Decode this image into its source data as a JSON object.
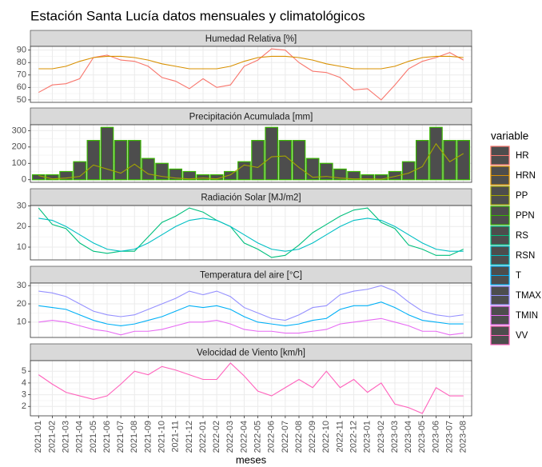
{
  "title": "Estación Santa Lucía datos mensuales y climatológicos",
  "x_label": "meses",
  "legend": {
    "title": "variable",
    "position": "right"
  },
  "chart_data": [
    {
      "type": "line",
      "title": "Humedad Relativa [%]",
      "categories": [
        "2021-01",
        "2021-02",
        "2021-03",
        "2021-04",
        "2021-05",
        "2021-06",
        "2021-07",
        "2021-08",
        "2021-09",
        "2021-10",
        "2021-11",
        "2021-12",
        "2022-01",
        "2022-02",
        "2022-03",
        "2022-04",
        "2022-05",
        "2022-06",
        "2022-07",
        "2022-08",
        "2022-09",
        "2022-10",
        "2022-11",
        "2022-12",
        "2023-01",
        "2023-02",
        "2023-03",
        "2023-04",
        "2023-05",
        "2023-06",
        "2023-07",
        "2023-08"
      ],
      "series": [
        {
          "name": "HR",
          "type": "line",
          "color": "#F8766D",
          "values": [
            56,
            62,
            63,
            67,
            84,
            86,
            82,
            81,
            77,
            68,
            65,
            59,
            67,
            60,
            62,
            77,
            82,
            91,
            90,
            80,
            73,
            72,
            68,
            58,
            59,
            50,
            62,
            75,
            81,
            84,
            88,
            82
          ]
        },
        {
          "name": "HRN",
          "type": "line",
          "color": "#D89000",
          "values": [
            75,
            75,
            77,
            81,
            84,
            85,
            85,
            84,
            82,
            79,
            77,
            75,
            75,
            75,
            77,
            81,
            84,
            85,
            85,
            84,
            82,
            79,
            77,
            75,
            75,
            75,
            77,
            81,
            84,
            85,
            85,
            84
          ]
        }
      ],
      "ylim": [
        48,
        93
      ],
      "yticks": [
        50,
        60,
        70,
        80,
        90
      ],
      "grid": true
    },
    {
      "type": "combo",
      "title": "Precipitación Acumulada [mm]",
      "categories": [
        "2021-01",
        "2021-02",
        "2021-03",
        "2021-04",
        "2021-05",
        "2021-06",
        "2021-07",
        "2021-08",
        "2021-09",
        "2021-10",
        "2021-11",
        "2021-12",
        "2022-01",
        "2022-02",
        "2022-03",
        "2022-04",
        "2022-05",
        "2022-06",
        "2022-07",
        "2022-08",
        "2022-09",
        "2022-10",
        "2022-11",
        "2022-12",
        "2023-01",
        "2023-02",
        "2023-03",
        "2023-04",
        "2023-05",
        "2023-06",
        "2023-07",
        "2023-08"
      ],
      "series": [
        {
          "name": "PP",
          "type": "line",
          "color": "#A3A500",
          "values": [
            25,
            5,
            10,
            20,
            90,
            65,
            40,
            95,
            35,
            20,
            10,
            5,
            10,
            5,
            30,
            90,
            75,
            140,
            145,
            75,
            15,
            20,
            10,
            5,
            5,
            3,
            20,
            40,
            80,
            220,
            110,
            160
          ]
        },
        {
          "name": "PPN",
          "type": "bar",
          "color": "#39B600",
          "values": [
            30,
            30,
            50,
            110,
            240,
            320,
            240,
            240,
            130,
            100,
            65,
            50,
            30,
            30,
            50,
            110,
            240,
            320,
            240,
            240,
            130,
            100,
            65,
            50,
            30,
            30,
            50,
            110,
            240,
            320,
            240,
            240
          ]
        }
      ],
      "ylim": [
        -16,
        336
      ],
      "yticks": [
        0,
        100,
        200,
        300
      ],
      "grid": true
    },
    {
      "type": "line",
      "title": "Radiación Solar [MJ/m2]",
      "categories": [
        "2021-01",
        "2021-02",
        "2021-03",
        "2021-04",
        "2021-05",
        "2021-06",
        "2021-07",
        "2021-08",
        "2021-09",
        "2021-10",
        "2021-11",
        "2021-12",
        "2022-01",
        "2022-02",
        "2022-03",
        "2022-04",
        "2022-05",
        "2022-06",
        "2022-07",
        "2022-08",
        "2022-09",
        "2022-10",
        "2022-11",
        "2022-12",
        "2023-01",
        "2023-02",
        "2023-03",
        "2023-04",
        "2023-05",
        "2023-06",
        "2023-07",
        "2023-08"
      ],
      "series": [
        {
          "name": "RS",
          "type": "line",
          "color": "#00BF7D",
          "values": [
            29,
            21,
            19,
            12,
            8,
            7,
            8,
            8,
            15,
            22,
            25,
            29,
            27,
            23,
            20,
            12,
            9,
            5,
            6,
            11,
            17,
            21,
            25,
            28,
            29,
            22,
            19,
            11,
            9,
            6,
            6,
            9
          ]
        },
        {
          "name": "RSN",
          "type": "line",
          "color": "#00BFC4",
          "values": [
            24,
            23,
            20,
            16,
            12,
            9,
            8,
            9,
            12,
            16,
            20,
            23,
            24,
            23,
            20,
            16,
            12,
            9,
            8,
            9,
            12,
            16,
            20,
            23,
            24,
            23,
            20,
            16,
            12,
            9,
            8,
            8
          ]
        }
      ],
      "ylim": [
        3.8,
        30.2
      ],
      "yticks": [
        10,
        20,
        30
      ],
      "grid": true
    },
    {
      "type": "line",
      "title": "Temperatura del aire [°C]",
      "categories": [
        "2021-01",
        "2021-02",
        "2021-03",
        "2021-04",
        "2021-05",
        "2021-06",
        "2021-07",
        "2021-08",
        "2021-09",
        "2021-10",
        "2021-11",
        "2021-12",
        "2022-01",
        "2022-02",
        "2022-03",
        "2022-04",
        "2022-05",
        "2022-06",
        "2022-07",
        "2022-08",
        "2022-09",
        "2022-10",
        "2022-11",
        "2022-12",
        "2023-01",
        "2023-02",
        "2023-03",
        "2023-04",
        "2023-05",
        "2023-06",
        "2023-07",
        "2023-08"
      ],
      "series": [
        {
          "name": "T",
          "type": "line",
          "color": "#00B0F6",
          "values": [
            19,
            18,
            17,
            14,
            11,
            9,
            8,
            9,
            11,
            13,
            16,
            19,
            18,
            19,
            17,
            13,
            10,
            9,
            8,
            9,
            11,
            12,
            17,
            19,
            19,
            21,
            18,
            14,
            11,
            10,
            9,
            9
          ]
        },
        {
          "name": "TMAX",
          "type": "line",
          "color": "#9590FF",
          "values": [
            27,
            26,
            24,
            20,
            16,
            14,
            13,
            14,
            17,
            20,
            23,
            27,
            25,
            27,
            24,
            18,
            15,
            12,
            11,
            14,
            18,
            19,
            25,
            27,
            28,
            30,
            27,
            21,
            16,
            14,
            13,
            14
          ]
        },
        {
          "name": "TMIN",
          "type": "line",
          "color": "#E76BF3",
          "values": [
            10,
            11,
            10,
            8,
            6,
            5,
            3,
            5,
            5,
            6,
            8,
            10,
            10,
            11,
            9,
            6,
            5,
            5,
            4,
            4,
            5,
            6,
            9,
            10,
            11,
            12,
            10,
            8,
            5,
            5,
            3,
            4
          ]
        }
      ],
      "ylim": [
        1.6,
        31.4
      ],
      "yticks": [
        10,
        20,
        30
      ],
      "grid": true
    },
    {
      "type": "line",
      "title": "Velocidad de Viento [km/h]",
      "categories": [
        "2021-01",
        "2021-02",
        "2021-03",
        "2021-04",
        "2021-05",
        "2021-06",
        "2021-07",
        "2021-08",
        "2021-09",
        "2021-10",
        "2021-11",
        "2021-12",
        "2022-01",
        "2022-02",
        "2022-03",
        "2022-04",
        "2022-05",
        "2022-06",
        "2022-07",
        "2022-08",
        "2022-09",
        "2022-10",
        "2022-11",
        "2022-12",
        "2023-01",
        "2023-02",
        "2023-03",
        "2023-04",
        "2023-05",
        "2023-06",
        "2023-07",
        "2023-08"
      ],
      "series": [
        {
          "name": "VV",
          "type": "line",
          "color": "#FF62BC",
          "values": [
            4.7,
            3.9,
            3.2,
            2.9,
            2.6,
            2.9,
            3.9,
            5.0,
            4.7,
            5.4,
            5.1,
            4.7,
            4.3,
            4.3,
            5.7,
            4.6,
            3.3,
            2.9,
            3.6,
            4.3,
            3.6,
            5.0,
            3.6,
            4.3,
            3.2,
            4.0,
            2.2,
            1.9,
            1.4,
            3.6,
            2.9,
            2.9
          ]
        }
      ],
      "ylim": [
        1.2,
        5.9
      ],
      "yticks": [
        2,
        3,
        4,
        5
      ],
      "grid": true
    }
  ]
}
